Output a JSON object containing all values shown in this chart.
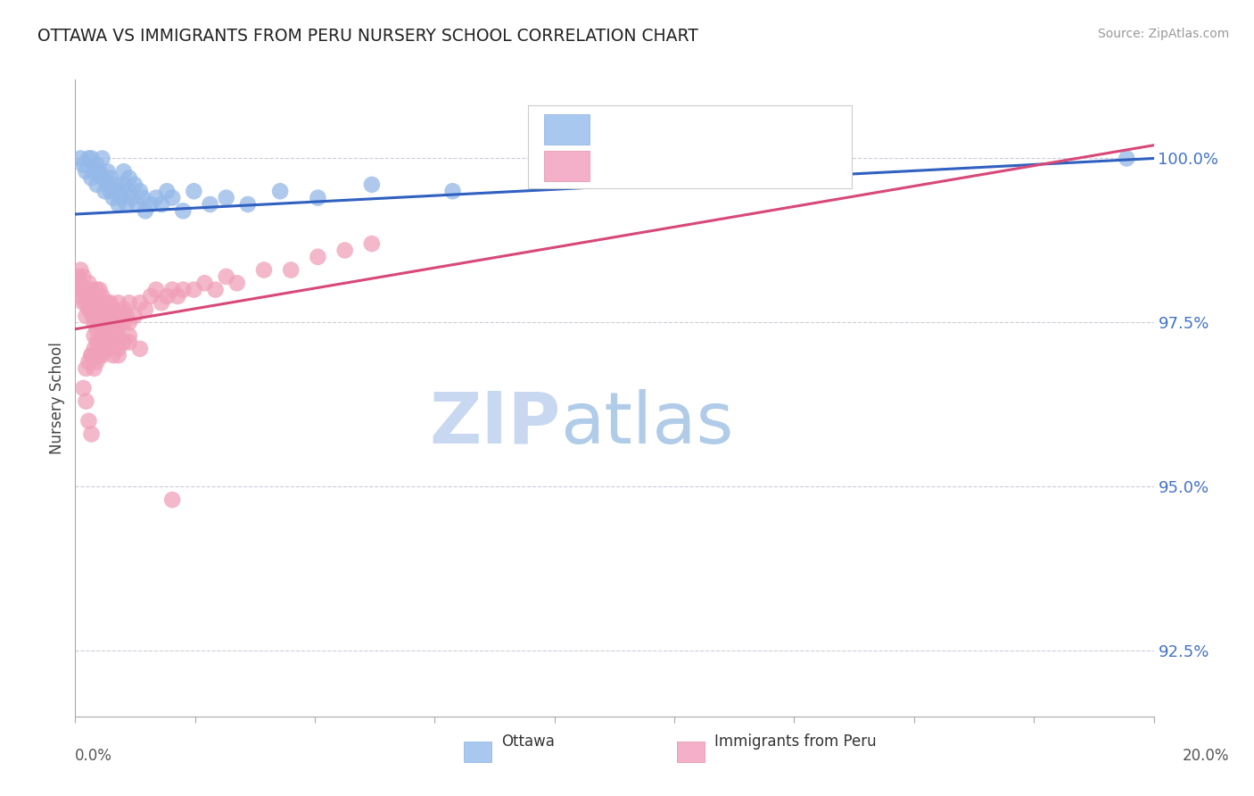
{
  "title": "OTTAWA VS IMMIGRANTS FROM PERU NURSERY SCHOOL CORRELATION CHART",
  "source": "Source: ZipAtlas.com",
  "ylabel": "Nursery School",
  "ytick_values": [
    92.5,
    95.0,
    97.5,
    100.0
  ],
  "xlim": [
    0.0,
    20.0
  ],
  "ylim": [
    91.5,
    101.2
  ],
  "ottawa_color": "#94b8e8",
  "peru_color": "#f0a0b8",
  "ottawa_line_color": "#3060c0",
  "peru_line_color": "#d84878",
  "legend_color": "#4472c4",
  "watermark_zip_color": "#c8d8f0",
  "watermark_atlas_color": "#b0cce8",
  "ottawa_x": [
    0.1,
    0.15,
    0.2,
    0.25,
    0.3,
    0.3,
    0.35,
    0.4,
    0.4,
    0.45,
    0.5,
    0.5,
    0.55,
    0.6,
    0.6,
    0.65,
    0.65,
    0.7,
    0.75,
    0.8,
    0.8,
    0.85,
    0.9,
    0.9,
    0.95,
    1.0,
    1.0,
    1.05,
    1.1,
    1.15,
    1.2,
    1.25,
    1.3,
    1.4,
    1.5,
    1.6,
    1.7,
    1.8,
    2.0,
    2.2,
    2.5,
    2.8,
    3.2,
    3.8,
    4.5,
    5.5,
    7.0,
    19.5
  ],
  "ottawa_y": [
    100.0,
    99.9,
    99.8,
    100.0,
    99.7,
    100.0,
    99.8,
    99.9,
    99.6,
    99.8,
    99.7,
    100.0,
    99.5,
    99.8,
    99.6,
    99.5,
    99.7,
    99.4,
    99.6,
    99.5,
    99.3,
    99.4,
    99.6,
    99.8,
    99.3,
    99.5,
    99.7,
    99.4,
    99.6,
    99.3,
    99.5,
    99.4,
    99.2,
    99.3,
    99.4,
    99.3,
    99.5,
    99.4,
    99.2,
    99.5,
    99.3,
    99.4,
    99.3,
    99.5,
    99.4,
    99.6,
    99.5,
    100.0
  ],
  "peru_x": [
    0.05,
    0.05,
    0.08,
    0.1,
    0.1,
    0.12,
    0.15,
    0.15,
    0.18,
    0.2,
    0.2,
    0.22,
    0.25,
    0.25,
    0.28,
    0.3,
    0.3,
    0.32,
    0.35,
    0.35,
    0.38,
    0.4,
    0.4,
    0.42,
    0.45,
    0.45,
    0.48,
    0.5,
    0.5,
    0.52,
    0.55,
    0.55,
    0.58,
    0.6,
    0.6,
    0.62,
    0.65,
    0.65,
    0.68,
    0.7,
    0.7,
    0.75,
    0.8,
    0.8,
    0.85,
    0.9,
    0.9,
    0.95,
    1.0,
    1.0,
    1.1,
    1.2,
    1.3,
    1.4,
    1.5,
    1.6,
    1.7,
    1.8,
    1.9,
    2.0,
    2.2,
    2.4,
    2.6,
    2.8,
    3.0,
    3.5,
    4.0,
    4.5,
    5.0,
    5.5,
    0.35,
    0.4,
    0.45,
    0.5,
    0.55,
    0.6,
    0.65,
    0.7,
    0.75,
    0.8,
    0.3,
    0.35,
    0.4,
    0.45,
    0.5,
    0.6,
    0.7,
    0.8,
    0.9,
    1.0,
    0.2,
    0.25,
    0.3,
    0.35,
    0.4,
    0.5,
    0.6,
    0.8,
    1.0,
    1.2,
    0.15,
    0.2,
    0.25,
    0.3,
    1.8
  ],
  "peru_y": [
    98.2,
    98.0,
    98.1,
    97.9,
    98.3,
    98.0,
    97.8,
    98.2,
    98.0,
    97.8,
    97.6,
    97.9,
    97.7,
    98.1,
    97.8,
    97.7,
    98.0,
    97.6,
    97.8,
    97.5,
    97.7,
    97.6,
    98.0,
    97.5,
    97.7,
    98.0,
    97.8,
    97.5,
    97.9,
    97.6,
    97.8,
    97.4,
    97.6,
    97.8,
    97.3,
    97.7,
    97.5,
    97.8,
    97.6,
    97.4,
    97.7,
    97.6,
    97.5,
    97.8,
    97.6,
    97.5,
    97.7,
    97.6,
    97.5,
    97.8,
    97.6,
    97.8,
    97.7,
    97.9,
    98.0,
    97.8,
    97.9,
    98.0,
    97.9,
    98.0,
    98.0,
    98.1,
    98.0,
    98.2,
    98.1,
    98.3,
    98.3,
    98.5,
    98.6,
    98.7,
    97.3,
    97.4,
    97.2,
    97.3,
    97.2,
    97.4,
    97.3,
    97.2,
    97.4,
    97.3,
    97.0,
    97.1,
    97.2,
    97.0,
    97.1,
    97.2,
    97.0,
    97.1,
    97.2,
    97.3,
    96.8,
    96.9,
    97.0,
    96.8,
    96.9,
    97.0,
    97.1,
    97.0,
    97.2,
    97.1,
    96.5,
    96.3,
    96.0,
    95.8,
    94.8
  ]
}
